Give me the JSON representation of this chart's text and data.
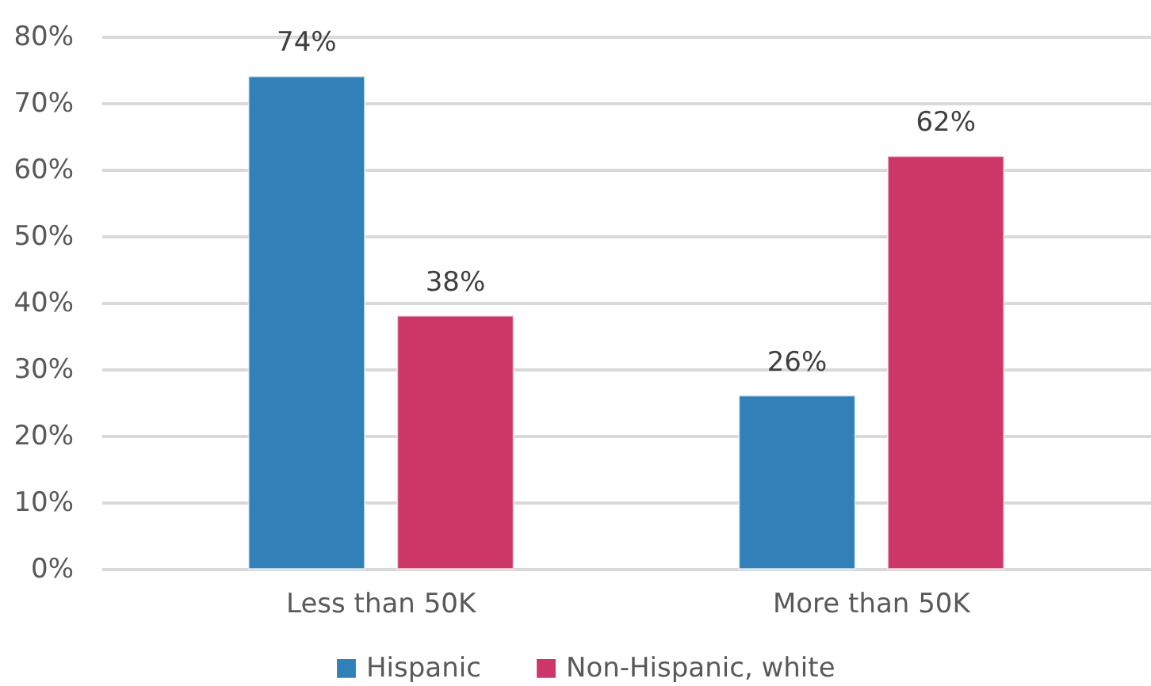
{
  "chart_data": {
    "type": "bar",
    "categories": [
      "Less than 50K",
      "More than 50K"
    ],
    "series": [
      {
        "name": "Hispanic",
        "color": "#3280b8",
        "values": [
          74,
          26
        ],
        "value_labels": [
          "74%",
          "26%"
        ]
      },
      {
        "name": "Non-Hispanic, white",
        "color": "#cd3768",
        "values": [
          38,
          62
        ],
        "value_labels": [
          "38%",
          "62%"
        ]
      }
    ],
    "ylim": [
      0,
      80
    ],
    "yticks": [
      {
        "value": 0,
        "label": "0%"
      },
      {
        "value": 10,
        "label": "10%"
      },
      {
        "value": 20,
        "label": "20%"
      },
      {
        "value": 30,
        "label": "30%"
      },
      {
        "value": 40,
        "label": "40%"
      },
      {
        "value": 50,
        "label": "50%"
      },
      {
        "value": 60,
        "label": "60%"
      },
      {
        "value": 70,
        "label": "70%"
      },
      {
        "value": 80,
        "label": "80%"
      }
    ],
    "grid": "y",
    "legend": "bottom"
  }
}
